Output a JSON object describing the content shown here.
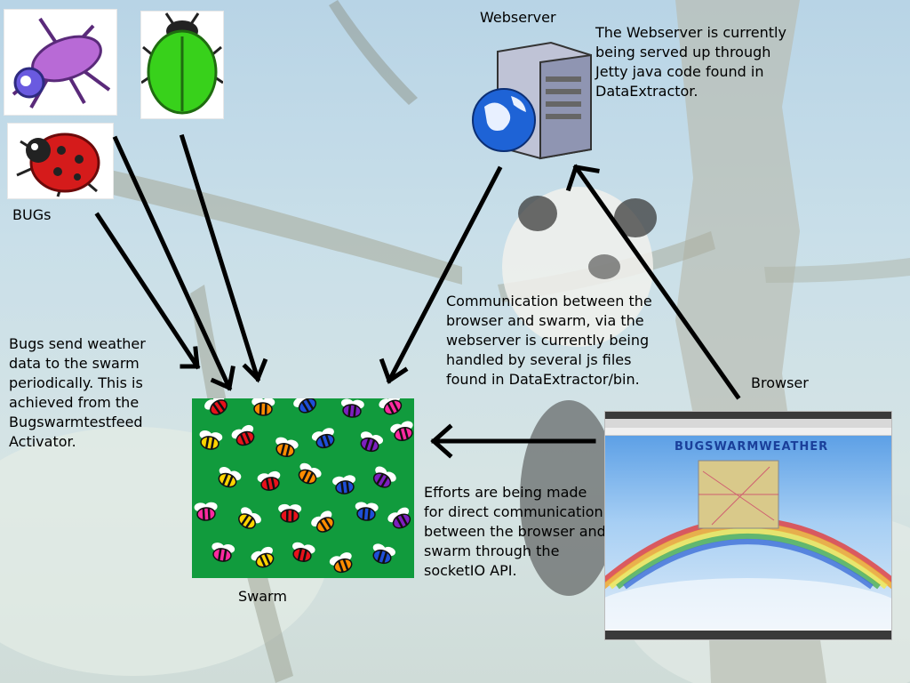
{
  "labels": {
    "bugs": "BUGs",
    "webserver": "Webserver",
    "browser": "Browser",
    "swarm": "Swarm"
  },
  "notes": {
    "webserver_note": "The Webserver is currently being served up through Jetty java code found in DataExtractor.",
    "communication_note": "Communication between the browser and swarm, via the webserver is currently being handled by several js files found in DataExtractor/bin.",
    "bugs_note": "Bugs send weather data to the swarm periodically. This is achieved from the Bugswarmtestfeed Activator.",
    "efforts_note": "Efforts are being made for direct communication between the browser and swarm through the socketIO API."
  },
  "browser_screenshot": {
    "app_title": "BUGSWARMWEATHER"
  },
  "colors": {
    "swarm_green": "#119b3d",
    "arrow": "#000000"
  },
  "icons": [
    "spider-bug-icon",
    "green-beetle-icon",
    "ladybug-icon",
    "server-icon",
    "globe-icon",
    "bee-icon"
  ]
}
